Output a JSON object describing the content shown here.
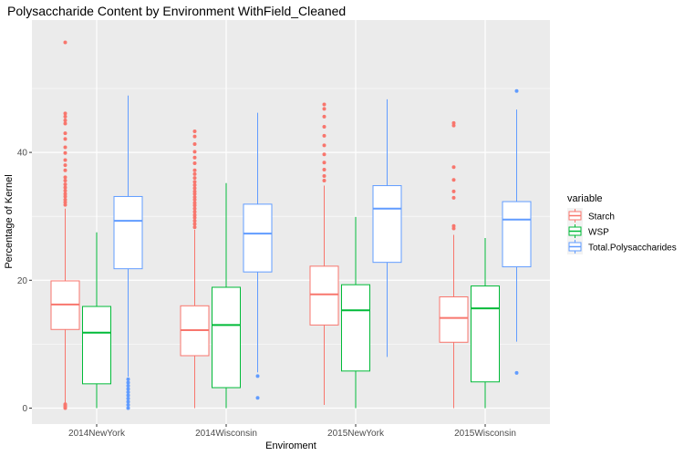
{
  "chart_data": {
    "type": "box",
    "title": "Polysaccharide Content by Environment WithField_Cleaned",
    "xlabel": "Enviroment",
    "ylabel": "Percentage of Kernel",
    "ylim": [
      -2.5,
      60.7
    ],
    "yticks": [
      0,
      20,
      40
    ],
    "grid": true,
    "legend": {
      "title": "variable",
      "position": "right"
    },
    "categories": [
      "2014NewYork",
      "2014Wisconsin",
      "2015NewYork",
      "2015Wisconsin"
    ],
    "series": [
      {
        "name": "Starch",
        "color": "#F8766D",
        "boxes": [
          {
            "whisker_low": 0.4,
            "q1": 12.3,
            "median": 16.2,
            "q3": 19.9,
            "whisker_high": 31.2,
            "outliers": [
              0.0,
              0.2,
              0.4,
              0.6,
              31.8,
              32.2,
              32.6,
              33.1,
              33.5,
              34.0,
              34.5,
              35.0,
              35.6,
              36.1,
              37.2,
              38.0,
              38.8,
              39.9,
              40.8,
              42.1,
              43.0,
              44.5,
              45.0,
              45.6,
              46.1,
              57.2
            ]
          },
          {
            "whisker_low": 0.0,
            "q1": 8.2,
            "median": 12.2,
            "q3": 16.0,
            "whisker_high": 27.9,
            "outliers": [
              28.3,
              28.8,
              29.3,
              29.8,
              30.2,
              30.7,
              31.2,
              31.7,
              32.1,
              32.6,
              33.0,
              33.5,
              33.9,
              34.4,
              34.9,
              35.4,
              36.0,
              36.6,
              37.2,
              38.3,
              39.2,
              40.1,
              41.3,
              42.5,
              43.3
            ]
          },
          {
            "whisker_low": 0.5,
            "q1": 13.0,
            "median": 17.8,
            "q3": 22.2,
            "whisker_high": 34.8,
            "outliers": [
              35.6,
              36.3,
              37.3,
              38.4,
              39.7,
              41.1,
              42.6,
              44.0,
              45.6,
              46.8,
              47.5
            ]
          },
          {
            "whisker_low": 0.0,
            "q1": 10.3,
            "median": 14.1,
            "q3": 17.4,
            "whisker_high": 27.1,
            "outliers": [
              28.1,
              28.5,
              32.9,
              33.9,
              35.7,
              37.7,
              44.2,
              44.6
            ]
          }
        ]
      },
      {
        "name": "WSP",
        "color": "#00BA38",
        "boxes": [
          {
            "whisker_low": 0.0,
            "q1": 3.8,
            "median": 11.8,
            "q3": 15.9,
            "whisker_high": 27.5,
            "outliers": []
          },
          {
            "whisker_low": 0.0,
            "q1": 3.2,
            "median": 13.0,
            "q3": 18.9,
            "whisker_high": 35.2,
            "outliers": []
          },
          {
            "whisker_low": 0.0,
            "q1": 5.8,
            "median": 15.3,
            "q3": 19.3,
            "whisker_high": 29.9,
            "outliers": []
          },
          {
            "whisker_low": 0.0,
            "q1": 4.1,
            "median": 15.6,
            "q3": 19.1,
            "whisker_high": 26.6,
            "outliers": []
          }
        ]
      },
      {
        "name": "Total.Polysaccharides",
        "color": "#619CFF",
        "boxes": [
          {
            "whisker_low": 4.9,
            "q1": 21.8,
            "median": 29.3,
            "q3": 33.1,
            "whisker_high": 48.9,
            "outliers": [
              0.0,
              0.5,
              1.0,
              1.5,
              2.0,
              2.5,
              3.0,
              3.5,
              4.0,
              4.5
            ]
          },
          {
            "whisker_low": 5.6,
            "q1": 21.3,
            "median": 27.3,
            "q3": 31.9,
            "whisker_high": 46.2,
            "outliers": [
              1.6,
              5.0
            ]
          },
          {
            "whisker_low": 8.0,
            "q1": 22.8,
            "median": 31.2,
            "q3": 34.8,
            "whisker_high": 48.3,
            "outliers": []
          },
          {
            "whisker_low": 10.4,
            "q1": 22.1,
            "median": 29.5,
            "q3": 32.3,
            "whisker_high": 46.7,
            "outliers": [
              5.5,
              49.6
            ]
          }
        ]
      }
    ],
    "style": {
      "panel_background": "#EBEBEB",
      "grid_color": "#FFFFFF",
      "text_color": "#4D4D4D"
    }
  }
}
